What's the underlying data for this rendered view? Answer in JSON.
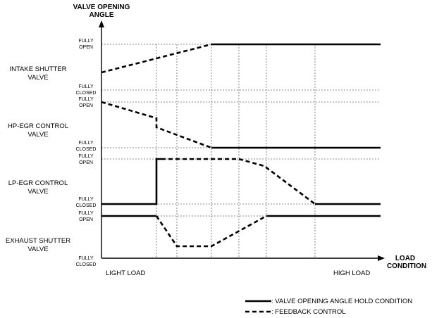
{
  "axes": {
    "y_title_line1": "VALVE OPENING",
    "y_title_line2": "ANGLE",
    "x_title_line1": "LOAD",
    "x_title_line2": "CONDITION",
    "x_left_label": "LIGHT LOAD",
    "x_right_label": "HIGH LOAD"
  },
  "levels": {
    "fully": "FULLY",
    "open": "OPEN",
    "closed": "CLOSED"
  },
  "valves": [
    {
      "id": "intake-shutter-valve",
      "line1": "INTAKE SHUTTER",
      "line2": "VALVE"
    },
    {
      "id": "hp-egr-control-valve",
      "line1": "HP-EGR CONTROL",
      "line2": "VALVE"
    },
    {
      "id": "lp-egr-control-valve",
      "line1": "LP-EGR CONTROL",
      "line2": "VALVE"
    },
    {
      "id": "exhaust-shutter-valve",
      "line1": "EXHAUST SHUTTER",
      "line2": "VALVE"
    }
  ],
  "legend": {
    "solid_text": ": VALVE OPENING ANGLE HOLD CONDITION",
    "dashed_text": ": FEEDBACK CONTROL"
  }
}
